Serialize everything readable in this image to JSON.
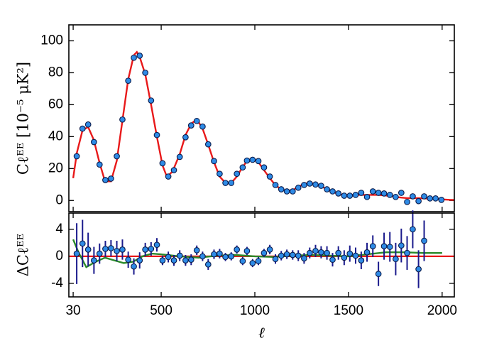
{
  "chart_data": [
    {
      "type": "scatter",
      "ylabel": "Cℓᴱᴱ [10⁻⁵ μK²]",
      "xlim": [
        7,
        2065
      ],
      "ylim": [
        -7,
        110
      ],
      "xticks": [
        30,
        500,
        1000,
        1500,
        2000
      ],
      "yticks": [
        0,
        20,
        40,
        60,
        80,
        100
      ],
      "x": [
        49,
        80,
        110,
        141,
        171,
        202,
        232,
        263,
        293,
        324,
        354,
        385,
        415,
        446,
        477,
        507,
        538,
        568,
        599,
        630,
        660,
        690,
        721,
        751,
        782,
        812,
        843,
        874,
        904,
        935,
        958,
        988,
        1019,
        1049,
        1080,
        1110,
        1141,
        1171,
        1202,
        1232,
        1263,
        1293,
        1324,
        1354,
        1385,
        1415,
        1446,
        1477,
        1507,
        1538,
        1568,
        1599,
        1630,
        1660,
        1690,
        1721,
        1752,
        1782,
        1813,
        1843,
        1874,
        1904,
        1935,
        1965,
        1996
      ],
      "series": [
        {
          "type": "scatter",
          "color": "#2e8be6",
          "values": [
            27.7,
            45,
            47.6,
            36.6,
            22.5,
            12.8,
            13.7,
            27.7,
            50.7,
            75,
            89.4,
            90.7,
            80,
            62.6,
            41,
            23.3,
            15,
            19,
            27.3,
            39.6,
            47,
            49.8,
            46.3,
            35.2,
            24.7,
            16.7,
            11,
            11,
            16.7,
            20.7,
            25,
            25.5,
            24.7,
            20.7,
            15,
            9.7,
            7,
            5.7,
            5.7,
            8,
            9.7,
            10.6,
            10,
            9.2,
            7,
            5.7,
            4.4,
            3,
            3,
            3.5,
            4.8,
            2.2,
            5.7,
            4.8,
            4.4,
            3.5,
            2.2,
            4.8,
            -0.9,
            2.6,
            -0.4,
            2.6,
            1.3,
            1.3,
            0.4
          ]
        },
        {
          "type": "line",
          "color": "#e8191a",
          "x": [
            30,
            50,
            80,
            110,
            140,
            170,
            200,
            232,
            263,
            293,
            324,
            354,
            370,
            385,
            415,
            446,
            477,
            507,
            530,
            560,
            599,
            630,
            660,
            680,
            700,
            721,
            751,
            782,
            812,
            843,
            874,
            904,
            935,
            960,
            985,
            1019,
            1049,
            1080,
            1110,
            1141,
            1171,
            1202,
            1232,
            1263,
            1293,
            1324,
            1354,
            1385,
            1415,
            1446,
            1477,
            1507,
            1538,
            1568,
            1599,
            1630,
            1660,
            1690,
            1721,
            1752,
            1782,
            1813,
            1843,
            1874,
            1904,
            1935,
            1965,
            1996,
            2030,
            2065
          ],
          "values": [
            14,
            30,
            44,
            46,
            38,
            24,
            12,
            12,
            25,
            50,
            76,
            91,
            93,
            90,
            79,
            60,
            40,
            22,
            15,
            18,
            29,
            41,
            48,
            50,
            49,
            45,
            35,
            24,
            15,
            11,
            11,
            15,
            21,
            25,
            26,
            24,
            19,
            14,
            9.5,
            7,
            6,
            6.5,
            8.5,
            10.5,
            11,
            10.5,
            9,
            7,
            5.5,
            4,
            3.5,
            3.5,
            3.5,
            3.5,
            3.5,
            3.5,
            3.5,
            3.2,
            2.8,
            2.2,
            1.8,
            1.5,
            1.5,
            1.5,
            1.3,
            1.1,
            0.9,
            0.7,
            0.5,
            0.3
          ]
        }
      ]
    },
    {
      "type": "scatter",
      "ylabel": "ΔCℓᴱᴱ",
      "xlabel": "ℓ",
      "xlim": [
        7,
        2065
      ],
      "ylim": [
        -6,
        6.4
      ],
      "xticks": [
        30,
        500,
        1000,
        1500,
        2000
      ],
      "yticks": [
        4,
        0,
        -4
      ],
      "reference_line": 0,
      "reference_color": "#e8191a",
      "x": [
        49,
        80,
        110,
        141,
        171,
        202,
        232,
        263,
        293,
        324,
        354,
        385,
        415,
        446,
        477,
        507,
        538,
        568,
        599,
        630,
        660,
        690,
        721,
        751,
        782,
        812,
        843,
        874,
        904,
        935,
        958,
        988,
        1019,
        1049,
        1080,
        1110,
        1141,
        1171,
        1202,
        1232,
        1263,
        1293,
        1324,
        1354,
        1385,
        1415,
        1446,
        1477,
        1507,
        1538,
        1568,
        1599,
        1630,
        1660,
        1690,
        1721,
        1752,
        1782,
        1813,
        1843,
        1874,
        1904
      ],
      "series": [
        {
          "type": "scatter",
          "color": "#2e8be6",
          "error_color": "#1a1a8c",
          "values": [
            0.4,
            1.9,
            1.0,
            -0.6,
            0.4,
            1.1,
            1.2,
            0.8,
            1.0,
            -0.5,
            -1.5,
            -0.6,
            1.0,
            1.1,
            1.7,
            -0.6,
            -0.1,
            -0.6,
            0.1,
            -0.6,
            -0.5,
            0.9,
            0.0,
            -1.2,
            0.3,
            0.4,
            -0.1,
            0.0,
            1.0,
            -0.7,
            0.8,
            -1.0,
            -0.7,
            0.5,
            1.0,
            -0.4,
            0.1,
            0.3,
            0.2,
            0.1,
            -0.3,
            0.5,
            0.8,
            0.6,
            0.5,
            -0.5,
            0.5,
            -0.2,
            0.4,
            0.1,
            -0.6,
            0.6,
            1.5,
            -2.6,
            1.5,
            1.4,
            -0.4,
            1.6,
            0.5,
            4.0,
            -1.9,
            2.3
          ],
          "errors": [
            4.5,
            3.5,
            2.5,
            2,
            1.5,
            1.2,
            1.2,
            1.5,
            1.5,
            1.2,
            1.2,
            1.2,
            1,
            1,
            1,
            0.7,
            0.8,
            0.8,
            0.8,
            0.8,
            0.8,
            0.7,
            0.7,
            0.8,
            0.7,
            0.7,
            0.6,
            0.6,
            0.6,
            0.6,
            0.6,
            0.6,
            0.6,
            0.6,
            0.7,
            0.7,
            0.7,
            0.7,
            0.7,
            0.8,
            0.8,
            0.8,
            0.9,
            0.9,
            1,
            1,
            1,
            1.1,
            1.2,
            1.2,
            1.3,
            1.4,
            1.6,
            1.8,
            2,
            2.2,
            2.4,
            2.5,
            2.5,
            2.8,
            2.8,
            3
          ]
        },
        {
          "type": "line",
          "color": "#2a8a2a",
          "x": [
            30,
            60,
            100,
            150,
            200,
            250,
            300,
            350,
            400,
            450,
            500,
            600,
            700,
            800,
            900,
            1000,
            1100,
            1200,
            1300,
            1400,
            1500,
            1600,
            1700,
            1800,
            1900,
            2000
          ],
          "values": [
            2.5,
            0.5,
            -1.6,
            -0.8,
            -0.2,
            -0.6,
            -1.0,
            -0.8,
            0.0,
            0.4,
            0.3,
            0.0,
            -0.2,
            0.1,
            0.2,
            0.0,
            -0.1,
            0.1,
            0.2,
            0.1,
            0.0,
            0.3,
            0.6,
            0.6,
            0.5,
            0.5
          ]
        }
      ]
    }
  ]
}
